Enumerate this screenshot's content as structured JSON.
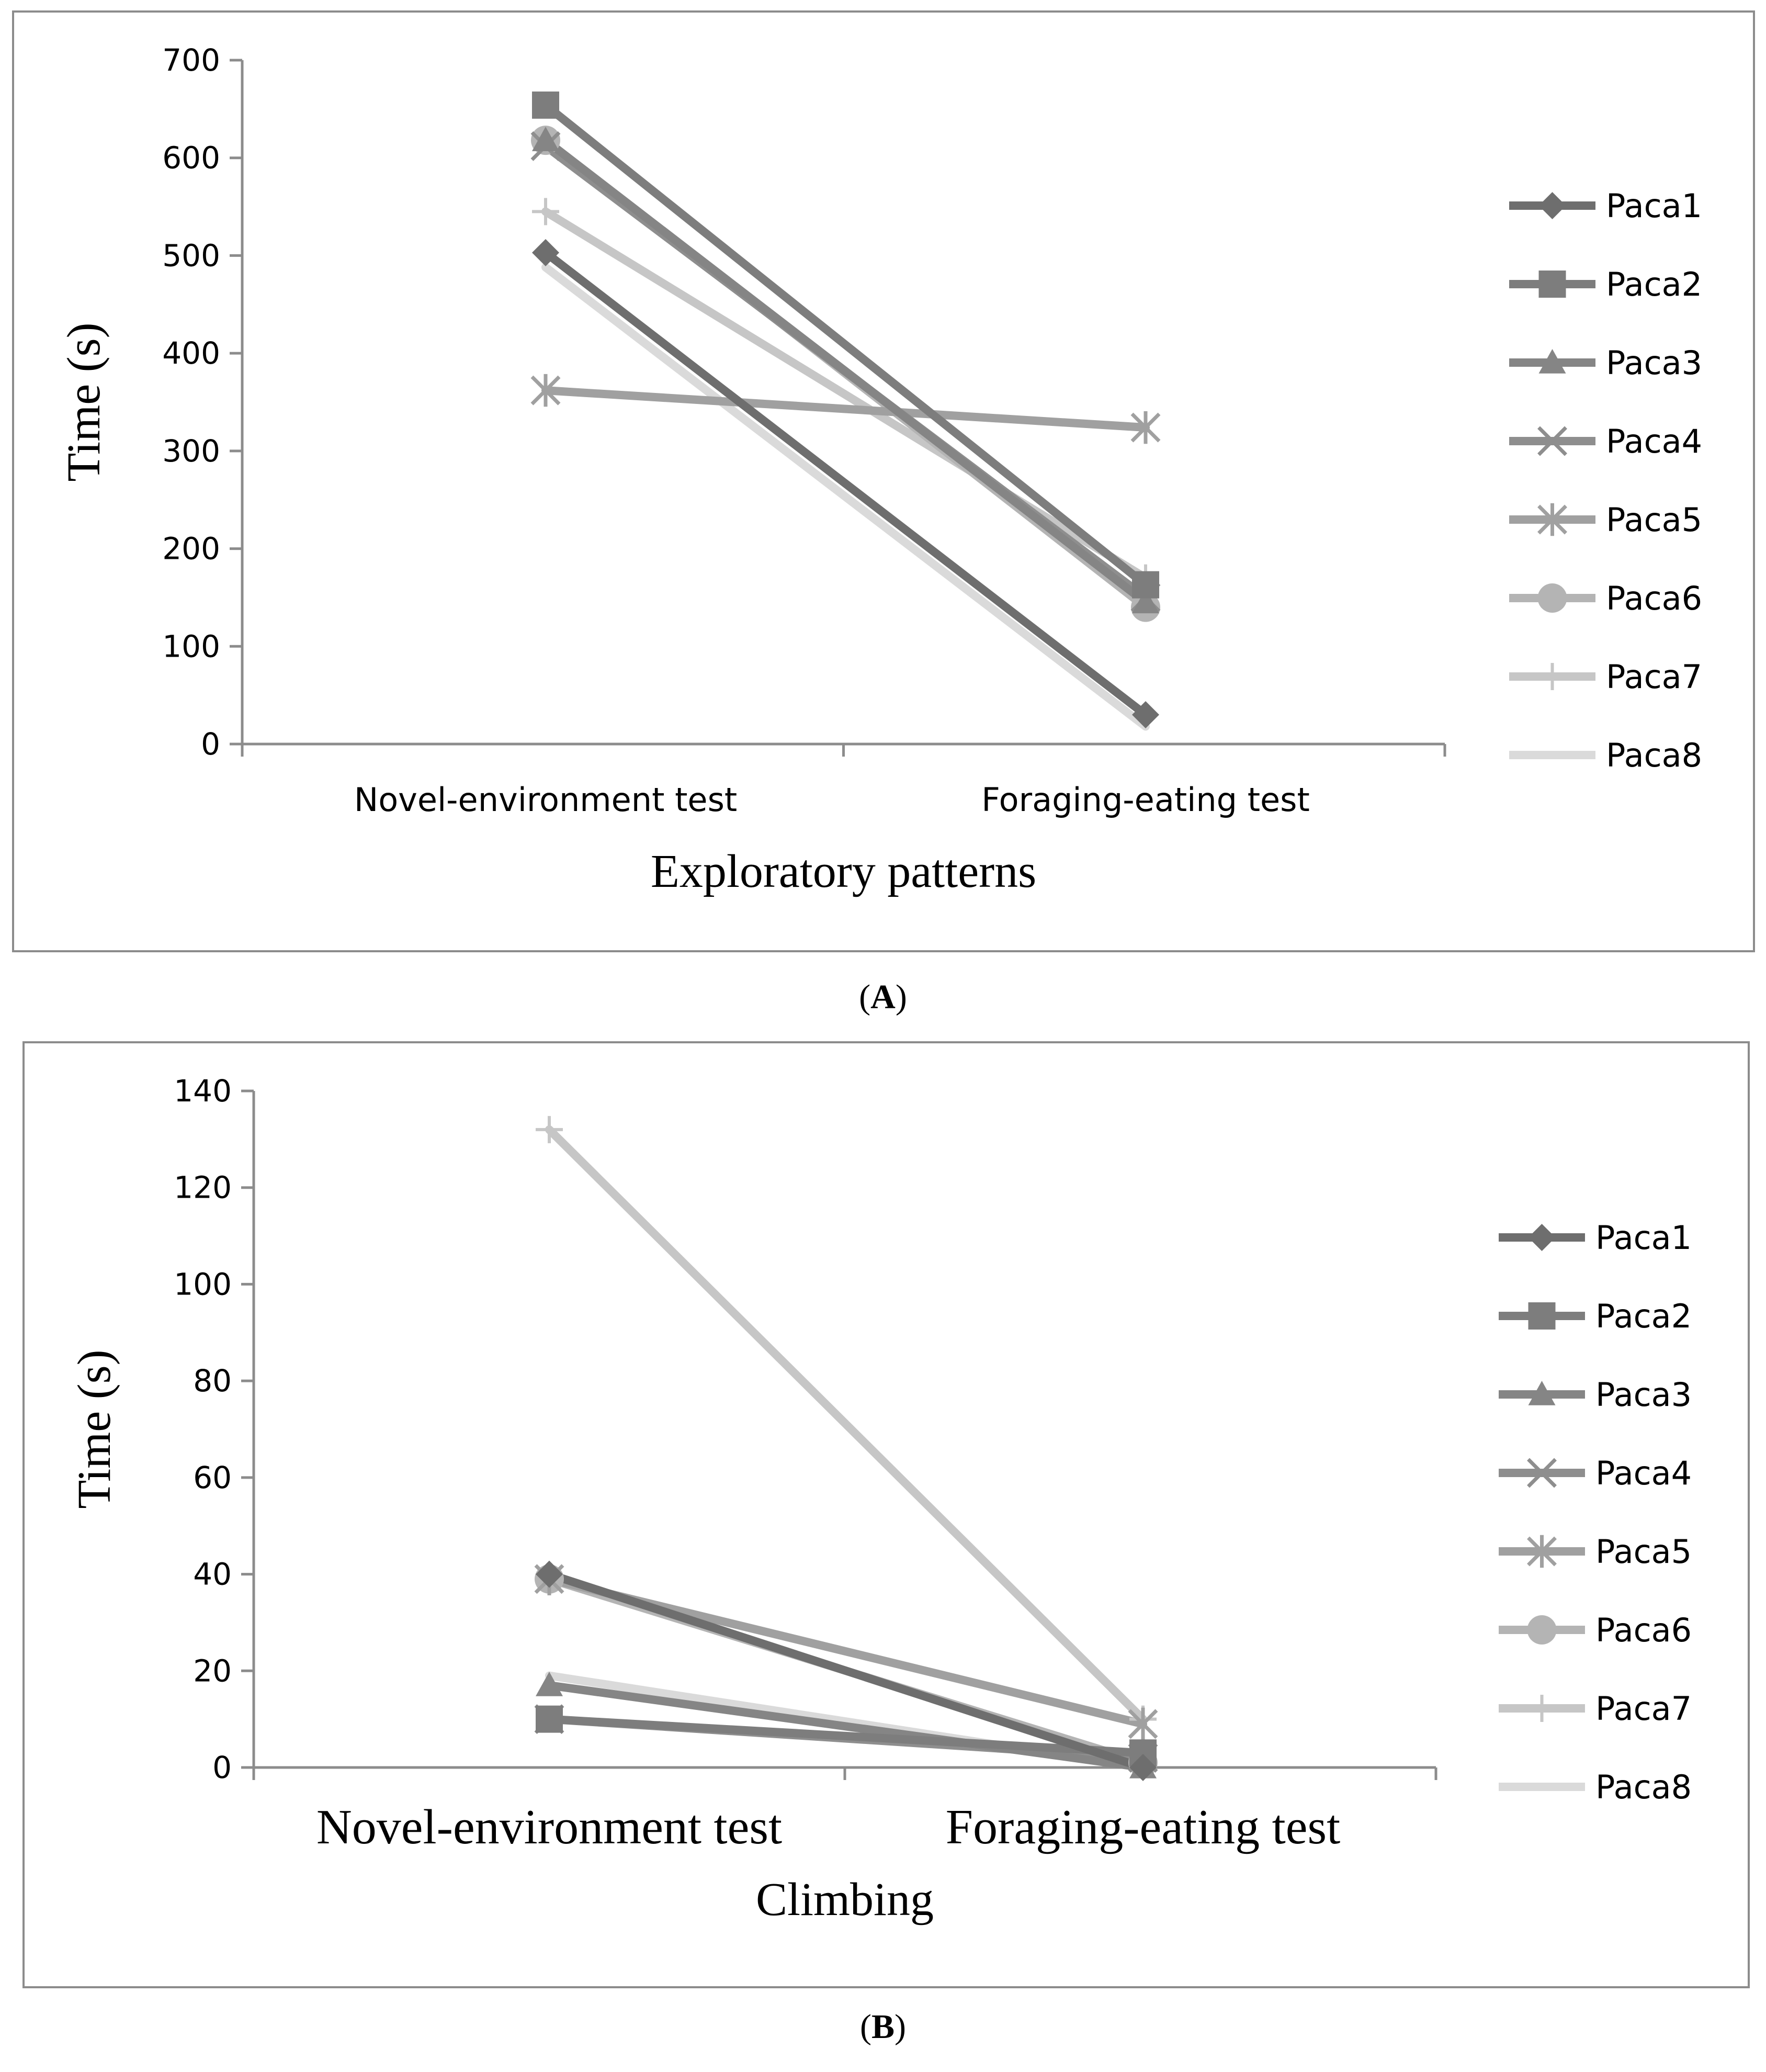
{
  "figure": {
    "panel_a_label": "A",
    "panel_b_label": "B"
  },
  "chart_data": [
    {
      "type": "line",
      "panel": "A",
      "xlabel": "Exploratory patterns",
      "ylabel": "Time (s)",
      "ylim": [
        0,
        700
      ],
      "yticks": [
        0,
        100,
        200,
        300,
        400,
        500,
        600,
        700
      ],
      "categories": [
        "Novel-environment test",
        "Foraging-eating test"
      ],
      "legend_position": "right",
      "series": [
        {
          "name": "Paca1",
          "marker": "diamond",
          "color": "#6e6e6e",
          "values": [
            503,
            30
          ]
        },
        {
          "name": "Paca2",
          "marker": "square",
          "color": "#7d7d7d",
          "values": [
            654,
            163
          ]
        },
        {
          "name": "Paca3",
          "marker": "triangle",
          "color": "#858585",
          "values": [
            618,
            145
          ]
        },
        {
          "name": "Paca4",
          "marker": "x",
          "color": "#8e8e8e",
          "values": [
            612,
            150
          ]
        },
        {
          "name": "Paca5",
          "marker": "star",
          "color": "#a0a0a0",
          "values": [
            362,
            324
          ]
        },
        {
          "name": "Paca6",
          "marker": "circle",
          "color": "#b4b4b4",
          "values": [
            618,
            140
          ]
        },
        {
          "name": "Paca7",
          "marker": "plus",
          "color": "#c6c6c6",
          "values": [
            545,
            170
          ]
        },
        {
          "name": "Paca8",
          "marker": "none",
          "color": "#dadada",
          "values": [
            488,
            18
          ]
        }
      ]
    },
    {
      "type": "line",
      "panel": "B",
      "xlabel": "Climbing",
      "ylabel": "Time (s)",
      "ylim": [
        0,
        140
      ],
      "yticks": [
        0,
        20,
        40,
        60,
        80,
        100,
        120,
        140
      ],
      "categories": [
        "Novel-environment test",
        "Foraging-eating test"
      ],
      "legend_position": "right",
      "series": [
        {
          "name": "Paca1",
          "marker": "diamond",
          "color": "#6e6e6e",
          "values": [
            40,
            0
          ]
        },
        {
          "name": "Paca2",
          "marker": "square",
          "color": "#7d7d7d",
          "values": [
            10,
            3
          ]
        },
        {
          "name": "Paca3",
          "marker": "triangle",
          "color": "#858585",
          "values": [
            17,
            0
          ]
        },
        {
          "name": "Paca4",
          "marker": "x",
          "color": "#8e8e8e",
          "values": [
            10,
            2
          ]
        },
        {
          "name": "Paca5",
          "marker": "star",
          "color": "#a0a0a0",
          "values": [
            39,
            9
          ]
        },
        {
          "name": "Paca6",
          "marker": "circle",
          "color": "#b4b4b4",
          "values": [
            39,
            1
          ]
        },
        {
          "name": "Paca7",
          "marker": "plus",
          "color": "#c6c6c6",
          "values": [
            132,
            10
          ]
        },
        {
          "name": "Paca8",
          "marker": "none",
          "color": "#dadada",
          "values": [
            19,
            0
          ]
        }
      ]
    }
  ]
}
